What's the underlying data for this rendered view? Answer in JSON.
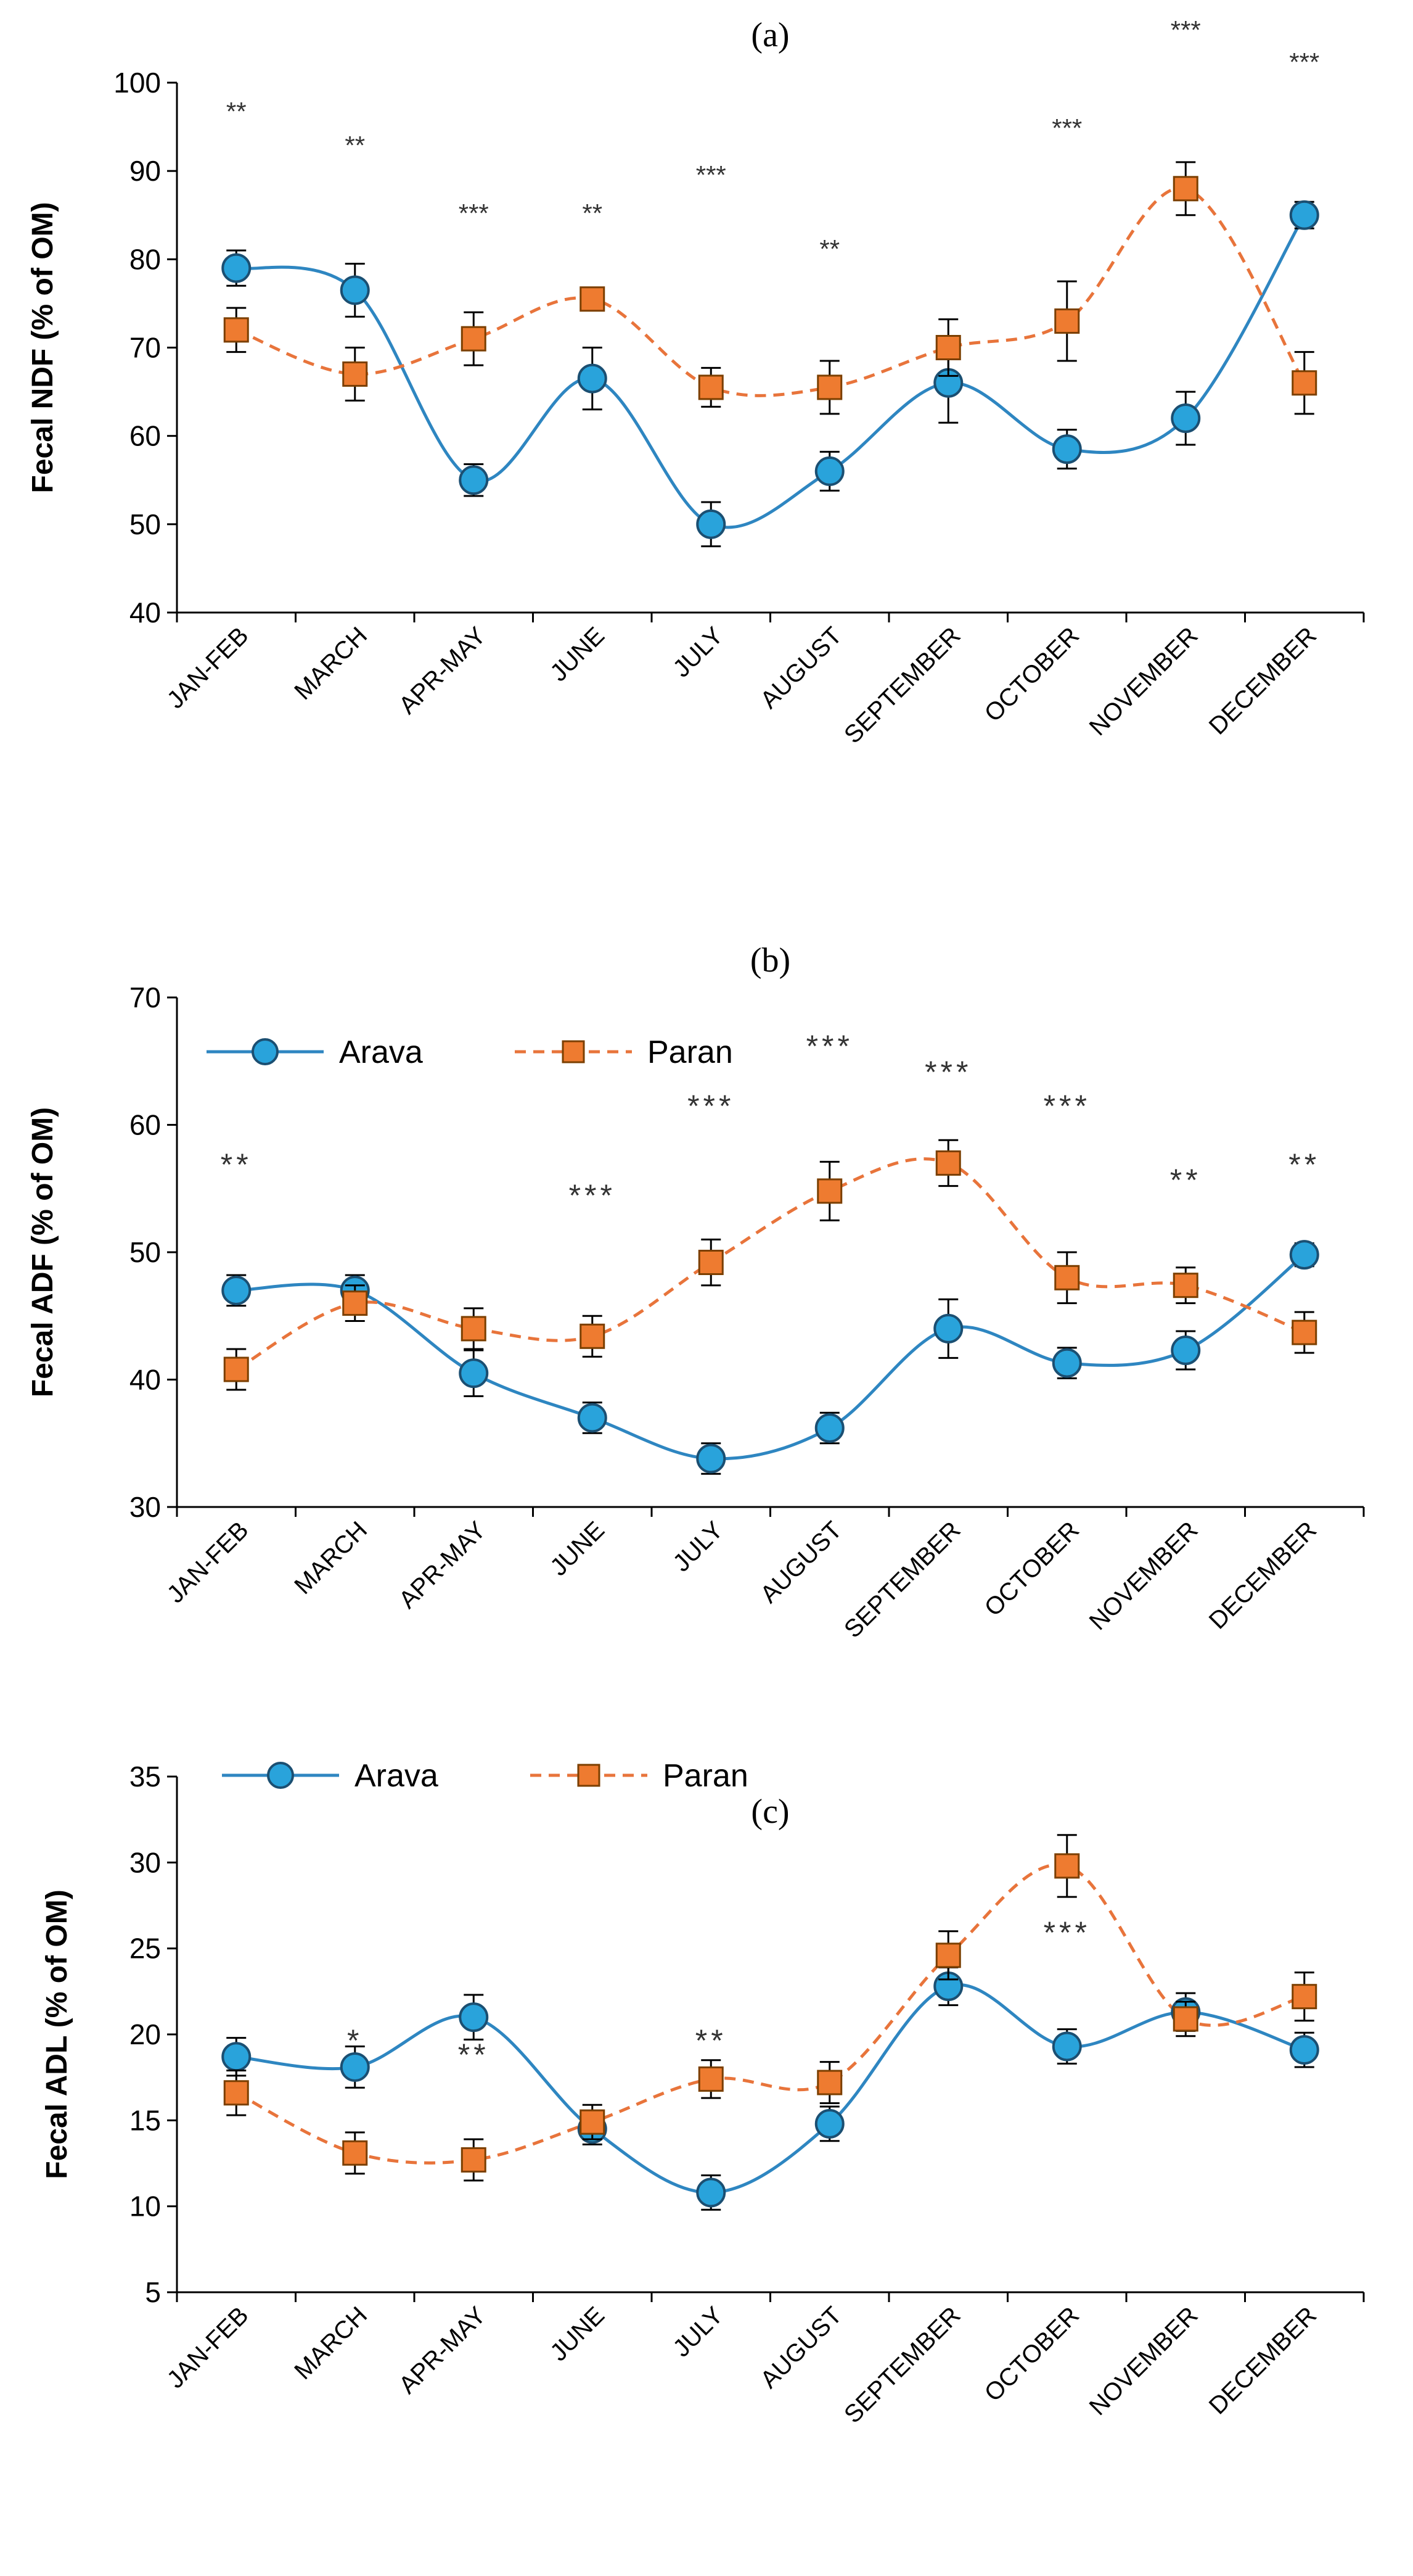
{
  "series_style": {
    "arava": {
      "color": "#2E86C1",
      "marker_fill": "#29A3DB",
      "marker": "circle",
      "line": "solid"
    },
    "paran": {
      "color": "#E8743B",
      "marker_fill": "#EE7B30",
      "marker": "square",
      "line": "dashed"
    }
  },
  "chart_data": [
    {
      "type": "line",
      "title": "(a)",
      "ylabel": "Fecal NDF (% of OM)",
      "xlabel": "",
      "ylim": [
        40,
        100
      ],
      "yticks": [
        40,
        50,
        60,
        70,
        80,
        90,
        100
      ],
      "categories": [
        "JAN-FEB",
        "MARCH",
        "APR-MAY",
        "JUNE",
        "JULY",
        "AUGUST",
        "SEPTEMBER",
        "OCTOBER",
        "NOVEMBER",
        "DECEMBER"
      ],
      "series": [
        {
          "name": "Arava",
          "key": "arava",
          "values": [
            79,
            76.5,
            55,
            66.5,
            50,
            56,
            66,
            58.5,
            62,
            85
          ],
          "errors": [
            2,
            3,
            1.8,
            3.5,
            2.5,
            2.2,
            4.5,
            2.2,
            3,
            1.5
          ]
        },
        {
          "name": "Paran",
          "key": "paran",
          "values": [
            72,
            67,
            71,
            75.5,
            65.5,
            65.5,
            70,
            73,
            88,
            66
          ],
          "errors": [
            2.5,
            3,
            3,
            1.2,
            2.2,
            3,
            3.2,
            4.5,
            3,
            3.5
          ]
        }
      ],
      "significance": [
        "**",
        "**",
        "***",
        "**",
        "***",
        "**",
        "",
        "***",
        "***",
        "***"
      ],
      "legend": null
    },
    {
      "type": "line",
      "title": "(b)",
      "ylabel": "Fecal ADF (% of OM)",
      "xlabel": "",
      "ylim": [
        30,
        70
      ],
      "yticks": [
        30,
        40,
        50,
        60,
        70
      ],
      "categories": [
        "JAN-FEB",
        "MARCH",
        "APR-MAY",
        "JUNE",
        "JULY",
        "AUGUST",
        "SEPTEMBER",
        "OCTOBER",
        "NOVEMBER",
        "DECEMBER"
      ],
      "series": [
        {
          "name": "Arava",
          "key": "arava",
          "values": [
            47,
            47,
            40.5,
            37,
            33.8,
            36.2,
            44,
            41.3,
            42.3,
            49.8
          ],
          "errors": [
            1.2,
            1.2,
            1.8,
            1.2,
            1.2,
            1.2,
            2.3,
            1.2,
            1.5,
            0.9
          ]
        },
        {
          "name": "Paran",
          "key": "paran",
          "values": [
            40.8,
            46,
            44,
            43.4,
            49.2,
            54.8,
            57,
            48,
            47.4,
            43.7
          ],
          "errors": [
            1.6,
            1.4,
            1.6,
            1.6,
            1.8,
            2.3,
            1.8,
            2,
            1.4,
            1.6
          ]
        }
      ],
      "significance": [
        "**",
        "",
        "",
        "***",
        "***",
        "***",
        "***",
        "***",
        "**",
        "**"
      ],
      "legend": {
        "items": [
          "Arava",
          "Paran"
        ],
        "position": "top-left"
      }
    },
    {
      "type": "line",
      "title": "(c)",
      "ylabel": "Fecal ADL (% of OM)",
      "xlabel": "",
      "ylim": [
        5,
        35
      ],
      "yticks": [
        5,
        10,
        15,
        20,
        25,
        30,
        35
      ],
      "categories": [
        "JAN-FEB",
        "MARCH",
        "APR-MAY",
        "JUNE",
        "JULY",
        "AUGUST",
        "SEPTEMBER",
        "OCTOBER",
        "NOVEMBER",
        "DECEMBER"
      ],
      "series": [
        {
          "name": "Arava",
          "key": "arava",
          "values": [
            18.7,
            18.1,
            21,
            14.5,
            10.8,
            14.8,
            22.8,
            19.3,
            21.3,
            19.1
          ],
          "errors": [
            1.1,
            1.2,
            1.3,
            0.9,
            1.0,
            1.0,
            1.1,
            1.0,
            1.1,
            1.0
          ]
        },
        {
          "name": "Paran",
          "key": "paran",
          "values": [
            16.6,
            13.1,
            12.7,
            14.9,
            17.4,
            17.2,
            24.6,
            29.8,
            20.9,
            22.2
          ],
          "errors": [
            1.3,
            1.2,
            1.2,
            1.0,
            1.1,
            1.2,
            1.4,
            1.8,
            1.0,
            1.4
          ]
        }
      ],
      "significance": [
        "",
        "*",
        "**",
        "",
        "**",
        "",
        "",
        "***",
        "",
        ""
      ],
      "legend": {
        "items": [
          "Arava",
          "Paran"
        ],
        "position": "top-left"
      }
    }
  ]
}
